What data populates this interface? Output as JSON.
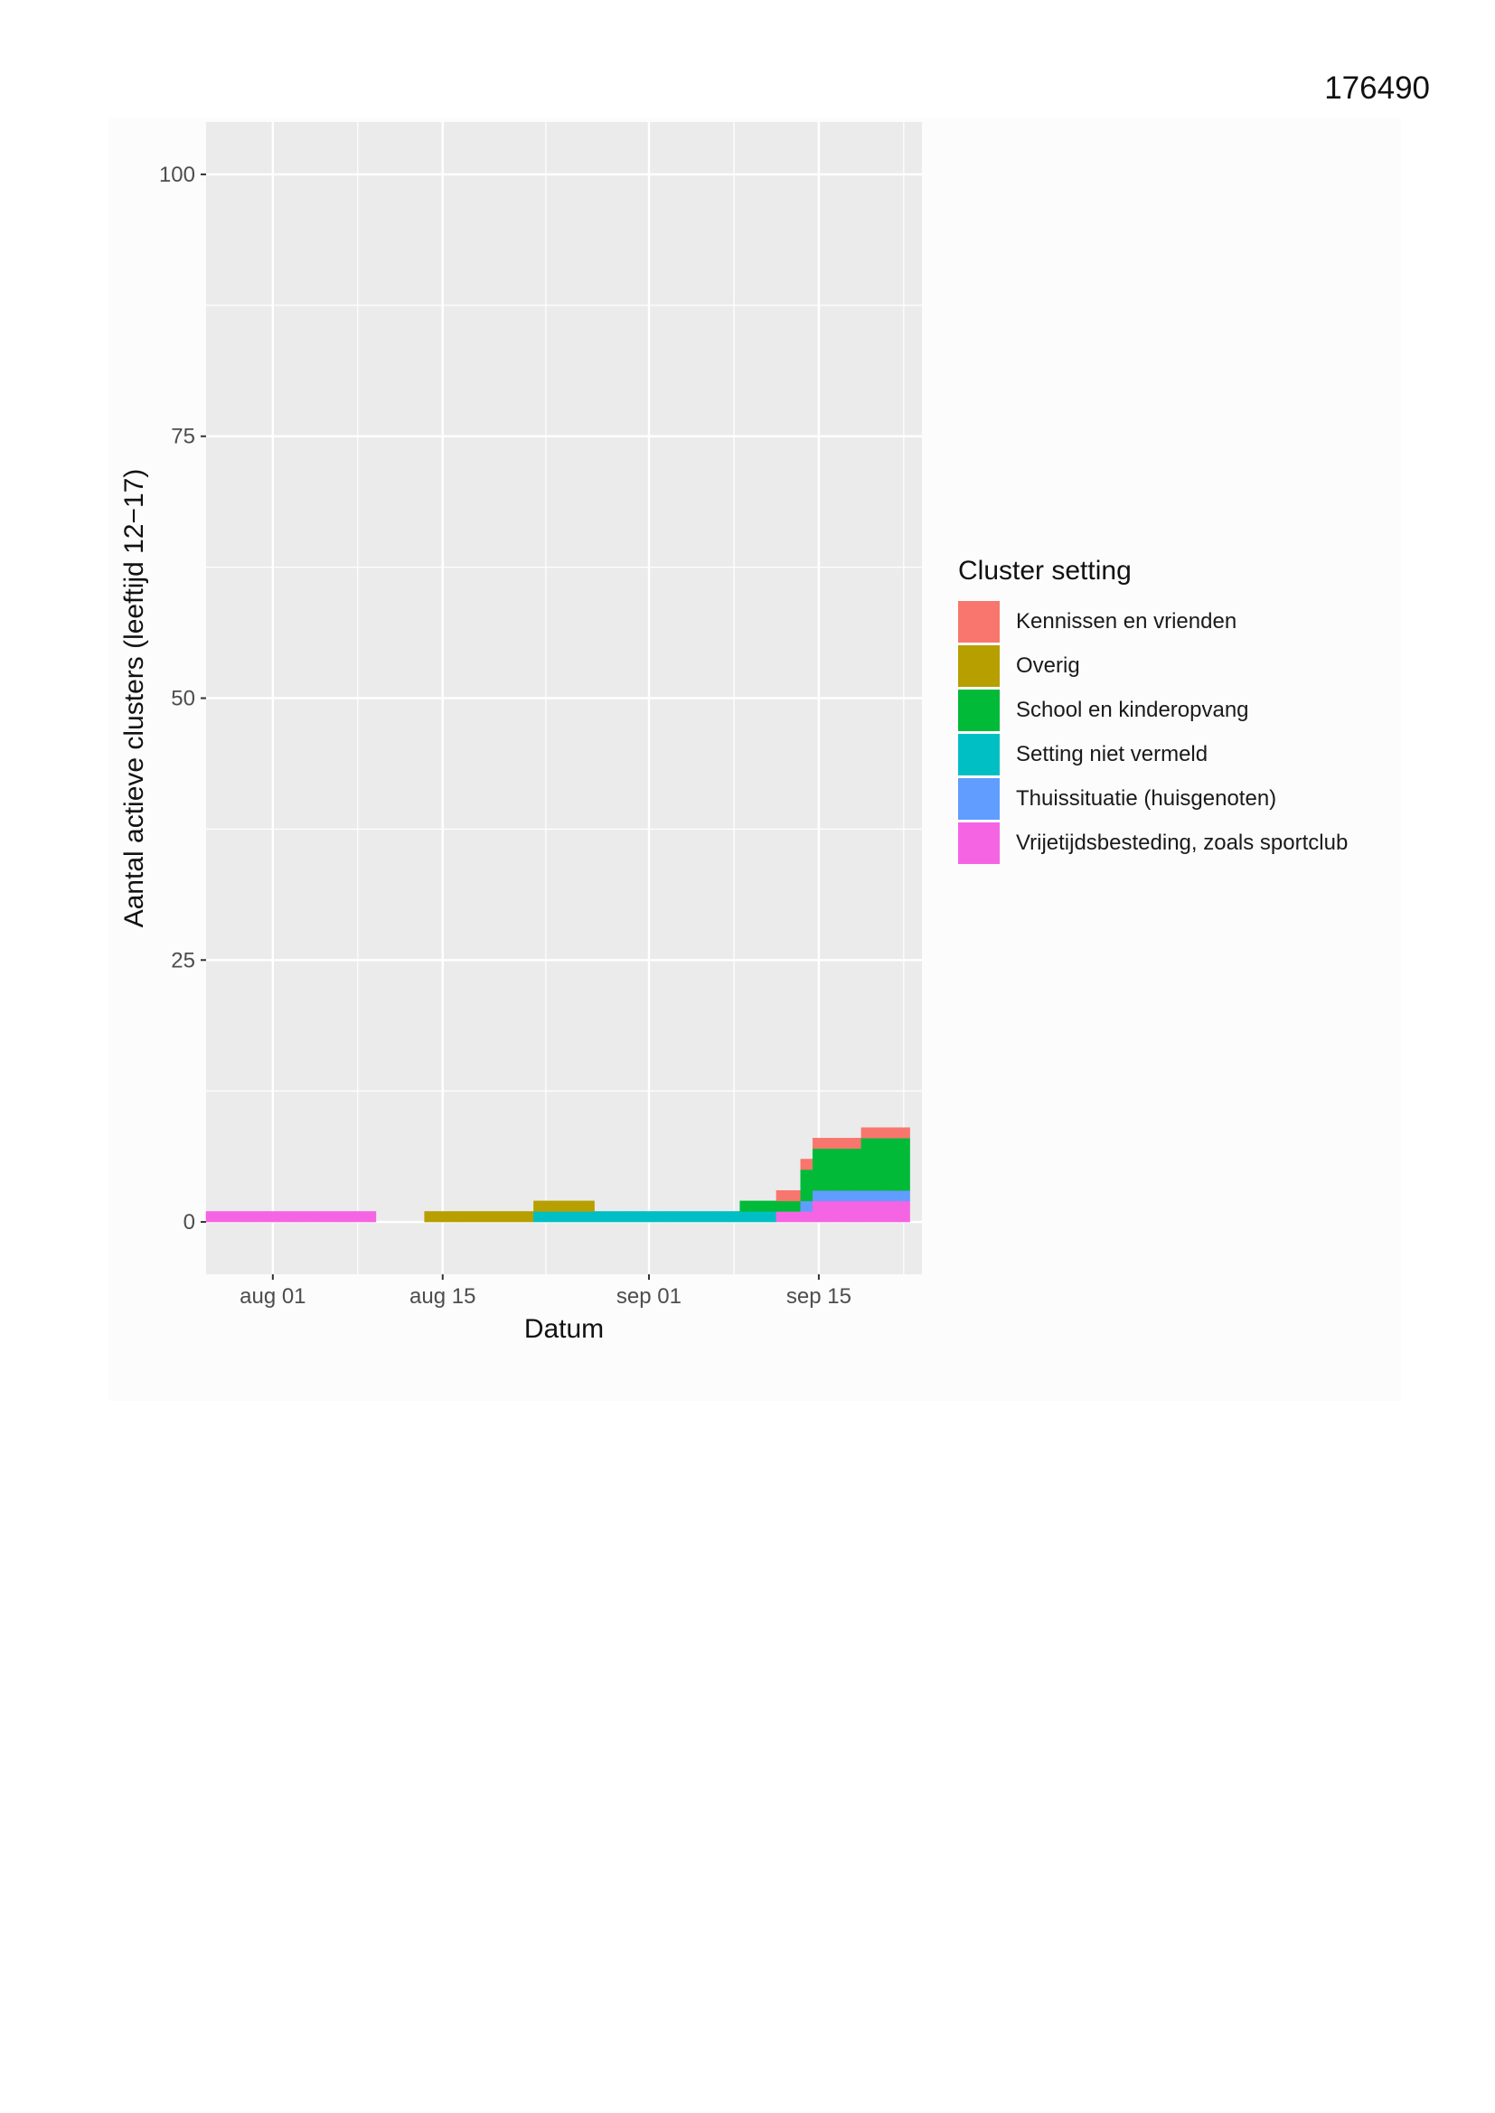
{
  "document_number": "176490",
  "chart_data": {
    "type": "bar",
    "stacked": true,
    "title": "",
    "xlabel": "Datum",
    "ylabel": "Aantal actieve clusters (leeftijd 12−17)",
    "ylim": [
      -5,
      105
    ],
    "yticks": [
      0,
      25,
      50,
      75,
      100
    ],
    "x_start": "2020-07-27",
    "x_end": "2020-09-23",
    "xticks": [
      {
        "date": "2020-08-01",
        "label": "aug 01"
      },
      {
        "date": "2020-08-15",
        "label": "aug 15"
      },
      {
        "date": "2020-09-01",
        "label": "sep 01"
      },
      {
        "date": "2020-09-15",
        "label": "sep 15"
      }
    ],
    "grid": true,
    "legend_title": "Cluster setting",
    "legend_position": "right",
    "dates": [
      "2020-07-27",
      "2020-07-28",
      "2020-07-29",
      "2020-07-30",
      "2020-07-31",
      "2020-08-01",
      "2020-08-02",
      "2020-08-03",
      "2020-08-04",
      "2020-08-05",
      "2020-08-06",
      "2020-08-07",
      "2020-08-08",
      "2020-08-09",
      "2020-08-10",
      "2020-08-11",
      "2020-08-12",
      "2020-08-13",
      "2020-08-14",
      "2020-08-15",
      "2020-08-16",
      "2020-08-17",
      "2020-08-18",
      "2020-08-19",
      "2020-08-20",
      "2020-08-21",
      "2020-08-22",
      "2020-08-23",
      "2020-08-24",
      "2020-08-25",
      "2020-08-26",
      "2020-08-27",
      "2020-08-28",
      "2020-08-29",
      "2020-08-30",
      "2020-08-31",
      "2020-09-01",
      "2020-09-02",
      "2020-09-03",
      "2020-09-04",
      "2020-09-05",
      "2020-09-06",
      "2020-09-07",
      "2020-09-08",
      "2020-09-09",
      "2020-09-10",
      "2020-09-11",
      "2020-09-12",
      "2020-09-13",
      "2020-09-14",
      "2020-09-15",
      "2020-09-16",
      "2020-09-17",
      "2020-09-18",
      "2020-09-19",
      "2020-09-20",
      "2020-09-21",
      "2020-09-22"
    ],
    "series": [
      {
        "name": "Vrijetijdsbesteding, zoals sportclub",
        "color": "#F564E3",
        "values": [
          1,
          1,
          1,
          1,
          1,
          1,
          1,
          1,
          1,
          1,
          1,
          1,
          1,
          1,
          0,
          0,
          0,
          0,
          0,
          0,
          0,
          0,
          0,
          0,
          0,
          0,
          0,
          0,
          0,
          0,
          0,
          0,
          0,
          0,
          0,
          0,
          0,
          0,
          0,
          0,
          0,
          0,
          0,
          0,
          0,
          0,
          0,
          1,
          1,
          1,
          2,
          2,
          2,
          2,
          2,
          2,
          2,
          2
        ]
      },
      {
        "name": "Thuissituatie (huisgenoten)",
        "color": "#619CFF",
        "values": [
          0,
          0,
          0,
          0,
          0,
          0,
          0,
          0,
          0,
          0,
          0,
          0,
          0,
          0,
          0,
          0,
          0,
          0,
          0,
          0,
          0,
          0,
          0,
          0,
          0,
          0,
          0,
          0,
          0,
          0,
          0,
          0,
          0,
          0,
          0,
          0,
          0,
          0,
          0,
          0,
          0,
          0,
          0,
          0,
          0,
          0,
          0,
          0,
          0,
          1,
          1,
          1,
          1,
          1,
          1,
          1,
          1,
          1
        ]
      },
      {
        "name": "Setting niet vermeld",
        "color": "#00BFC4",
        "values": [
          0,
          0,
          0,
          0,
          0,
          0,
          0,
          0,
          0,
          0,
          0,
          0,
          0,
          0,
          0,
          0,
          0,
          0,
          0,
          0,
          0,
          0,
          0,
          0,
          0,
          0,
          0,
          1,
          1,
          1,
          1,
          1,
          1,
          1,
          1,
          1,
          1,
          1,
          1,
          1,
          1,
          1,
          1,
          1,
          1,
          1,
          1,
          0,
          0,
          0,
          0,
          0,
          0,
          0,
          0,
          0,
          0,
          0
        ]
      },
      {
        "name": "School en kinderopvang",
        "color": "#00BA38",
        "values": [
          0,
          0,
          0,
          0,
          0,
          0,
          0,
          0,
          0,
          0,
          0,
          0,
          0,
          0,
          0,
          0,
          0,
          0,
          0,
          0,
          0,
          0,
          0,
          0,
          0,
          0,
          0,
          0,
          0,
          0,
          0,
          0,
          0,
          0,
          0,
          0,
          0,
          0,
          0,
          0,
          0,
          0,
          0,
          0,
          1,
          1,
          1,
          1,
          1,
          3,
          4,
          4,
          4,
          4,
          5,
          5,
          5,
          5
        ]
      },
      {
        "name": "Overig",
        "color": "#B79F00",
        "values": [
          0,
          0,
          0,
          0,
          0,
          0,
          0,
          0,
          0,
          0,
          0,
          0,
          0,
          0,
          0,
          0,
          0,
          0,
          1,
          1,
          1,
          1,
          1,
          1,
          1,
          1,
          1,
          1,
          1,
          1,
          1,
          1,
          0,
          0,
          0,
          0,
          0,
          0,
          0,
          0,
          0,
          0,
          0,
          0,
          0,
          0,
          0,
          0,
          0,
          0,
          0,
          0,
          0,
          0,
          0,
          0,
          0,
          0
        ]
      },
      {
        "name": "Kennissen en vrienden",
        "color": "#F8766D",
        "values": [
          0,
          0,
          0,
          0,
          0,
          0,
          0,
          0,
          0,
          0,
          0,
          0,
          0,
          0,
          0,
          0,
          0,
          0,
          0,
          0,
          0,
          0,
          0,
          0,
          0,
          0,
          0,
          0,
          0,
          0,
          0,
          0,
          0,
          0,
          0,
          0,
          0,
          0,
          0,
          0,
          0,
          0,
          0,
          0,
          0,
          0,
          0,
          1,
          1,
          1,
          1,
          1,
          1,
          1,
          1,
          1,
          1,
          1
        ]
      }
    ],
    "legend_order": [
      {
        "name": "Kennissen en vrienden",
        "color": "#F8766D"
      },
      {
        "name": "Overig",
        "color": "#B79F00"
      },
      {
        "name": "School en kinderopvang",
        "color": "#00BA38"
      },
      {
        "name": "Setting niet vermeld",
        "color": "#00BFC4"
      },
      {
        "name": "Thuissituatie (huisgenoten)",
        "color": "#619CFF"
      },
      {
        "name": "Vrijetijdsbesteding, zoals sportclub",
        "color": "#F564E3"
      }
    ],
    "panel_background": "#EBEBEB",
    "grid_color": "#FFFFFF"
  }
}
